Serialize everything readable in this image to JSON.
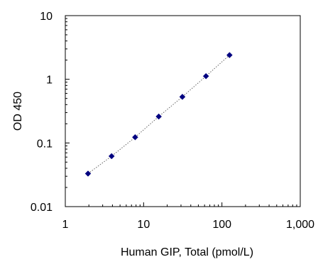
{
  "chart_data": {
    "type": "scatter",
    "title": "",
    "xlabel": "Human GIP, Total (pmol/L)",
    "ylabel": "OD 450",
    "x_scale": "log",
    "y_scale": "log",
    "xlim": [
      1,
      1000
    ],
    "ylim": [
      0.01,
      10
    ],
    "x_tick_labels": [
      "1",
      "10",
      "100",
      "1,000"
    ],
    "y_tick_labels": [
      "0.01",
      "0.1",
      "1",
      "10"
    ],
    "grid": false,
    "legend": "none",
    "series": [
      {
        "x": [
          1.95,
          3.9,
          7.8,
          15.6,
          31.25,
          62.5,
          125
        ],
        "y": [
          0.033,
          0.062,
          0.123,
          0.26,
          0.53,
          1.12,
          2.4
        ],
        "marker": "diamond",
        "color": "#000080"
      }
    ],
    "trendline": {
      "style": "dotted",
      "color": "#666666"
    }
  }
}
